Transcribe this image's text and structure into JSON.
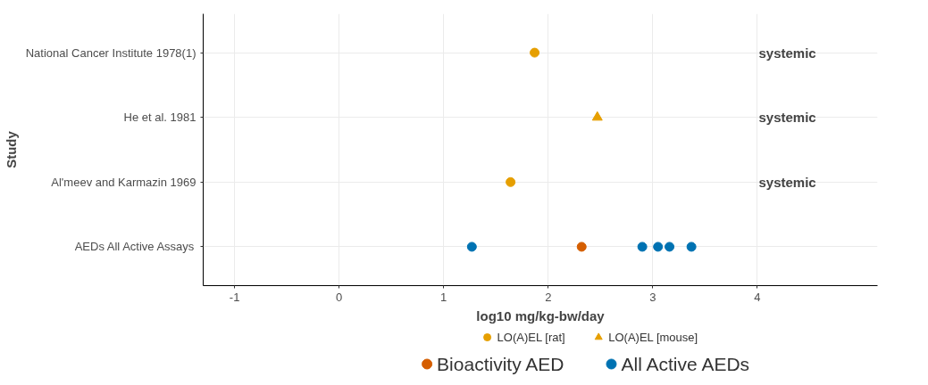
{
  "chart_data": {
    "type": "scatter",
    "orientation": "horizontal",
    "xlabel": "log10 mg/kg-bw/day",
    "ylabel": "Study",
    "categories": [
      "National Cancer Institute 1978(1)",
      "He et al. 1981",
      "Al'meev and Karmazin 1969",
      "AEDs All Active Assays"
    ],
    "xlim": [
      -1.3,
      5.15
    ],
    "xticks": [
      -1,
      0,
      1,
      2,
      3,
      4
    ],
    "grid": true,
    "legend": "bottom",
    "series": [
      {
        "name": "LO(A)EL [rat]",
        "color": "#e69f00",
        "marker": "circle",
        "x": [
          "National Cancer Institute 1978(1)",
          "Al'meev and Karmazin 1969"
        ],
        "values": [
          1.87,
          1.64
        ]
      },
      {
        "name": "LO(A)EL [mouse]",
        "color": "#e69f00",
        "marker": "triangle",
        "x": [
          "He et al. 1981"
        ],
        "values": [
          2.47
        ]
      },
      {
        "name": "Bioactivity AED",
        "color": "#d55e00",
        "marker": "circle",
        "x": [
          "AEDs All Active Assays"
        ],
        "values": [
          2.32
        ]
      },
      {
        "name": "All Active AEDs",
        "color": "#0072b2",
        "marker": "circle",
        "x": [
          "AEDs All Active Assays",
          "AEDs All Active Assays",
          "AEDs All Active Assays",
          "AEDs All Active Assays",
          "AEDs All Active Assays"
        ],
        "values": [
          1.27,
          2.9,
          3.05,
          3.16,
          3.37
        ]
      }
    ],
    "annotations": [
      "systemic",
      "systemic",
      "systemic"
    ]
  }
}
